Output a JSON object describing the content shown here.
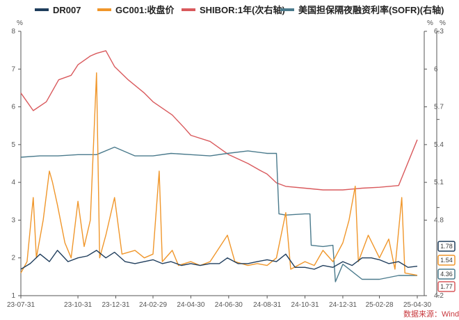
{
  "chart_data": {
    "type": "line",
    "legend_position": "top",
    "grid": false,
    "x_labels": [
      "23-07-31",
      "23-10-31",
      "23-12-31",
      "24-02-29",
      "24-04-30",
      "24-06-30",
      "24-08-31",
      "24-10-31",
      "24-12-31",
      "25-02-28",
      "25-04-30"
    ],
    "left_axis": {
      "unit": "%",
      "ylim": [
        1,
        8
      ],
      "ticks": [
        "1",
        "2",
        "3",
        "4",
        "5",
        "6",
        "7",
        "8"
      ]
    },
    "right_axis_1": {
      "unit": "%",
      "ylim": [
        4.2,
        6.3
      ],
      "ticks": [
        "4.2",
        "4.8",
        "5.1",
        "5.4",
        "5.7",
        "6",
        "6.3"
      ]
    },
    "right_axis_2": {
      "unit": "%",
      "ylim": [
        0,
        3
      ]
    },
    "source": "数据来源：Wind",
    "series": [
      {
        "name": "DR007",
        "color": "#1f3d5c",
        "axis": "left",
        "points": [
          [
            "23-07-31",
            1.7
          ],
          [
            "23-08-15",
            1.85
          ],
          [
            "23-08-31",
            2.1
          ],
          [
            "23-09-15",
            1.9
          ],
          [
            "23-09-28",
            2.2
          ],
          [
            "23-10-15",
            1.9
          ],
          [
            "23-10-31",
            2.0
          ],
          [
            "23-11-15",
            2.05
          ],
          [
            "23-11-30",
            2.2
          ],
          [
            "23-12-15",
            2.0
          ],
          [
            "23-12-29",
            2.15
          ],
          [
            "24-01-15",
            1.9
          ],
          [
            "24-01-31",
            1.85
          ],
          [
            "24-02-15",
            1.9
          ],
          [
            "24-02-29",
            1.95
          ],
          [
            "24-03-15",
            1.85
          ],
          [
            "24-03-29",
            1.9
          ],
          [
            "24-04-15",
            1.8
          ],
          [
            "24-04-30",
            1.85
          ],
          [
            "24-05-15",
            1.8
          ],
          [
            "24-05-31",
            1.85
          ],
          [
            "24-06-15",
            1.85
          ],
          [
            "24-06-28",
            2.0
          ],
          [
            "24-07-15",
            1.85
          ],
          [
            "24-07-31",
            1.85
          ],
          [
            "24-08-15",
            1.9
          ],
          [
            "24-08-31",
            1.95
          ],
          [
            "24-09-15",
            1.9
          ],
          [
            "24-09-30",
            2.1
          ],
          [
            "24-10-15",
            1.75
          ],
          [
            "24-10-31",
            1.75
          ],
          [
            "24-11-15",
            1.7
          ],
          [
            "24-11-29",
            1.8
          ],
          [
            "24-12-15",
            1.75
          ],
          [
            "24-12-31",
            1.9
          ],
          [
            "25-01-15",
            1.8
          ],
          [
            "25-01-31",
            2.0
          ],
          [
            "25-02-15",
            2.0
          ],
          [
            "25-02-28",
            1.95
          ],
          [
            "25-03-15",
            1.85
          ],
          [
            "25-03-31",
            1.9
          ],
          [
            "25-04-15",
            1.75
          ],
          [
            "25-04-30",
            1.78
          ]
        ]
      },
      {
        "name": "GC001:收盘价",
        "color": "#f0962a",
        "axis": "left",
        "points": [
          [
            "23-07-31",
            1.6
          ],
          [
            "23-08-10",
            1.9
          ],
          [
            "23-08-20",
            3.6
          ],
          [
            "23-08-25",
            2.0
          ],
          [
            "23-09-05",
            3.0
          ],
          [
            "23-09-15",
            4.3
          ],
          [
            "23-09-20",
            4.0
          ],
          [
            "23-09-28",
            3.4
          ],
          [
            "23-10-10",
            2.4
          ],
          [
            "23-10-20",
            2.0
          ],
          [
            "23-10-31",
            3.5
          ],
          [
            "23-11-10",
            2.3
          ],
          [
            "23-11-20",
            3.0
          ],
          [
            "23-11-30",
            6.9
          ],
          [
            "23-12-05",
            2.0
          ],
          [
            "23-12-15",
            2.6
          ],
          [
            "23-12-29",
            3.6
          ],
          [
            "24-01-10",
            2.1
          ],
          [
            "24-01-31",
            2.2
          ],
          [
            "24-02-15",
            2.0
          ],
          [
            "24-02-29",
            2.1
          ],
          [
            "24-03-10",
            4.3
          ],
          [
            "24-03-15",
            1.9
          ],
          [
            "24-03-31",
            2.2
          ],
          [
            "24-04-10",
            1.8
          ],
          [
            "24-04-30",
            1.9
          ],
          [
            "24-05-15",
            1.8
          ],
          [
            "24-05-31",
            1.9
          ],
          [
            "24-06-20",
            2.4
          ],
          [
            "24-06-28",
            2.6
          ],
          [
            "24-07-10",
            1.9
          ],
          [
            "24-07-31",
            1.8
          ],
          [
            "24-08-15",
            1.85
          ],
          [
            "24-08-31",
            1.8
          ],
          [
            "24-09-15",
            2.0
          ],
          [
            "24-09-30",
            3.2
          ],
          [
            "24-10-08",
            1.7
          ],
          [
            "24-10-31",
            1.9
          ],
          [
            "24-11-15",
            1.8
          ],
          [
            "24-11-29",
            2.2
          ],
          [
            "24-12-15",
            1.9
          ],
          [
            "24-12-31",
            2.4
          ],
          [
            "25-01-10",
            3.0
          ],
          [
            "25-01-20",
            3.9
          ],
          [
            "25-01-25",
            1.9
          ],
          [
            "25-02-10",
            2.6
          ],
          [
            "25-02-28",
            2.0
          ],
          [
            "25-03-15",
            2.5
          ],
          [
            "25-03-25",
            1.7
          ],
          [
            "25-04-05",
            3.6
          ],
          [
            "25-04-10",
            1.6
          ],
          [
            "25-04-30",
            1.54
          ]
        ]
      },
      {
        "name": "SHIBOR:1年(次右轴)",
        "color": "#d9595c",
        "axis": "right_2",
        "points": [
          [
            "23-07-31",
            2.3
          ],
          [
            "23-08-20",
            2.1
          ],
          [
            "23-09-10",
            2.2
          ],
          [
            "23-09-30",
            2.45
          ],
          [
            "23-10-20",
            2.5
          ],
          [
            "23-10-31",
            2.62
          ],
          [
            "23-11-20",
            2.72
          ],
          [
            "23-11-30",
            2.75
          ],
          [
            "23-12-15",
            2.78
          ],
          [
            "23-12-29",
            2.6
          ],
          [
            "24-01-20",
            2.45
          ],
          [
            "24-02-15",
            2.3
          ],
          [
            "24-02-29",
            2.2
          ],
          [
            "24-03-31",
            2.05
          ],
          [
            "24-04-20",
            1.9
          ],
          [
            "24-04-30",
            1.82
          ],
          [
            "24-05-31",
            1.75
          ],
          [
            "24-06-30",
            1.6
          ],
          [
            "24-07-31",
            1.5
          ],
          [
            "24-08-20",
            1.42
          ],
          [
            "24-08-31",
            1.38
          ],
          [
            "24-09-15",
            1.28
          ],
          [
            "24-09-30",
            1.24
          ],
          [
            "24-10-31",
            1.22
          ],
          [
            "24-11-29",
            1.2
          ],
          [
            "24-12-31",
            1.2
          ],
          [
            "25-01-31",
            1.22
          ],
          [
            "25-02-28",
            1.23
          ],
          [
            "25-03-31",
            1.25
          ],
          [
            "25-04-30",
            1.77
          ]
        ]
      },
      {
        "name": "美国担保隔夜融资利率(SOFR)(右轴)",
        "color": "#4a7a8c",
        "axis": "right_1",
        "points": [
          [
            "23-07-31",
            5.3
          ],
          [
            "23-08-31",
            5.31
          ],
          [
            "23-09-29",
            5.31
          ],
          [
            "23-10-31",
            5.32
          ],
          [
            "23-11-30",
            5.32
          ],
          [
            "23-12-29",
            5.38
          ],
          [
            "24-01-31",
            5.31
          ],
          [
            "24-02-29",
            5.31
          ],
          [
            "24-03-29",
            5.33
          ],
          [
            "24-04-30",
            5.32
          ],
          [
            "24-05-31",
            5.31
          ],
          [
            "24-06-28",
            5.33
          ],
          [
            "24-07-31",
            5.35
          ],
          [
            "24-08-31",
            5.33
          ],
          [
            "24-09-15",
            5.33
          ],
          [
            "24-09-19",
            4.85
          ],
          [
            "24-09-30",
            4.84
          ],
          [
            "24-10-31",
            4.85
          ],
          [
            "24-11-08",
            4.85
          ],
          [
            "24-11-10",
            4.6
          ],
          [
            "24-11-29",
            4.59
          ],
          [
            "24-12-15",
            4.6
          ],
          [
            "24-12-19",
            4.31
          ],
          [
            "24-12-31",
            4.45
          ],
          [
            "25-01-31",
            4.33
          ],
          [
            "25-02-28",
            4.33
          ],
          [
            "25-03-31",
            4.36
          ],
          [
            "25-04-30",
            4.36
          ]
        ]
      }
    ],
    "end_labels": [
      {
        "value": "1.78",
        "series": "DR007"
      },
      {
        "value": "1.54",
        "series": "GC001:收盘价"
      },
      {
        "value": "4.36",
        "series": "美国担保隔夜融资利率(SOFR)(右轴)"
      },
      {
        "value": "1.77",
        "series": "SHIBOR:1年(次右轴)"
      }
    ]
  }
}
